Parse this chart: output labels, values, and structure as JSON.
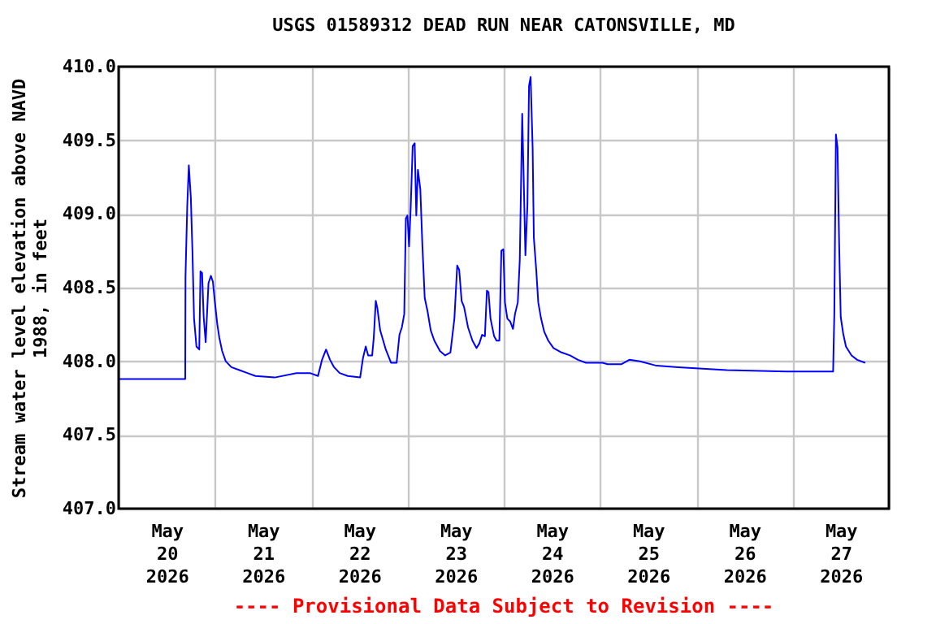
{
  "chart_data": {
    "type": "line",
    "title": "USGS 01589312 DEAD RUN NEAR CATONSVILLE, MD",
    "ylabel": "Stream water level elevation above NAVD\n1988, in feet",
    "annotations": [
      "---- Provisional Data Subject to Revision ----"
    ],
    "xlim": [
      "2026-05-20T00:00",
      "2026-05-28T00:00"
    ],
    "xticks": [
      {
        "value": "2026-05-20T00:00",
        "label": null
      },
      {
        "value": "2026-05-20T12:00",
        "label": "May\n20\n2026"
      },
      {
        "value": "2026-05-21T00:00",
        "label": null
      },
      {
        "value": "2026-05-21T12:00",
        "label": "May\n21\n2026"
      },
      {
        "value": "2026-05-22T00:00",
        "label": null
      },
      {
        "value": "2026-05-22T12:00",
        "label": "May\n22\n2026"
      },
      {
        "value": "2026-05-23T00:00",
        "label": null
      },
      {
        "value": "2026-05-23T12:00",
        "label": "May\n23\n2026"
      },
      {
        "value": "2026-05-24T00:00",
        "label": null
      },
      {
        "value": "2026-05-24T12:00",
        "label": "May\n24\n2026"
      },
      {
        "value": "2026-05-25T00:00",
        "label": null
      },
      {
        "value": "2026-05-25T12:00",
        "label": "May\n25\n2026"
      },
      {
        "value": "2026-05-26T00:00",
        "label": null
      },
      {
        "value": "2026-05-26T12:00",
        "label": "May\n26\n2026"
      },
      {
        "value": "2026-05-27T00:00",
        "label": null
      },
      {
        "value": "2026-05-27T12:00",
        "label": "May\n27\n2026"
      },
      {
        "value": "2026-05-28T00:00",
        "label": null
      }
    ],
    "ylim": [
      407.0,
      410.0
    ],
    "yticks": [
      {
        "value": 407.0,
        "label": "407.0"
      },
      {
        "value": 407.5,
        "label": "407.5"
      },
      {
        "value": 408.0,
        "label": "408.0"
      },
      {
        "value": 408.5,
        "label": "408.5"
      },
      {
        "value": 409.0,
        "label": "409.0"
      },
      {
        "value": 409.5,
        "label": "409.5"
      },
      {
        "value": 410.0,
        "label": "410.0"
      }
    ],
    "grid": true,
    "legend": false,
    "marker": "none",
    "line_style": "solid",
    "series": [
      {
        "color": "#0000ff",
        "x": [
          "2026-05-20T00:00",
          "2026-05-20T16:36",
          "2026-05-20T16:40",
          "2026-05-20T17:06",
          "2026-05-20T17:30",
          "2026-05-20T18:00",
          "2026-05-20T18:24",
          "2026-05-20T18:48",
          "2026-05-20T19:24",
          "2026-05-20T20:06",
          "2026-05-20T20:24",
          "2026-05-20T20:48",
          "2026-05-20T21:12",
          "2026-05-20T21:42",
          "2026-05-20T22:24",
          "2026-05-20T23:00",
          "2026-05-20T23:30",
          "2026-05-21T00:00",
          "2026-05-21T00:36",
          "2026-05-21T01:06",
          "2026-05-21T01:48",
          "2026-05-21T02:42",
          "2026-05-21T04:06",
          "2026-05-21T06:06",
          "2026-05-21T08:06",
          "2026-05-21T10:06",
          "2026-05-21T14:54",
          "2026-05-21T20:18",
          "2026-05-21T23:42",
          "2026-05-22T01:42",
          "2026-05-22T02:42",
          "2026-05-22T03:42",
          "2026-05-22T04:42",
          "2026-05-22T05:42",
          "2026-05-22T07:06",
          "2026-05-22T09:06",
          "2026-05-22T12:12",
          "2026-05-22T12:54",
          "2026-05-22T13:36",
          "2026-05-22T14:12",
          "2026-05-22T15:12",
          "2026-05-22T15:36",
          "2026-05-22T16:06",
          "2026-05-22T16:30",
          "2026-05-22T17:12",
          "2026-05-22T18:36",
          "2026-05-22T19:54",
          "2026-05-22T21:18",
          "2026-05-22T22:00",
          "2026-05-22T22:36",
          "2026-05-22T23:12",
          "2026-05-22T23:36",
          "2026-05-23T00:00",
          "2026-05-23T00:24",
          "2026-05-23T00:48",
          "2026-05-23T01:18",
          "2026-05-23T01:48",
          "2026-05-23T02:12",
          "2026-05-23T02:36",
          "2026-05-23T03:12",
          "2026-05-23T03:42",
          "2026-05-23T04:18",
          "2026-05-23T05:00",
          "2026-05-23T05:48",
          "2026-05-23T06:42",
          "2026-05-23T08:06",
          "2026-05-23T09:24",
          "2026-05-23T10:42",
          "2026-05-23T11:42",
          "2026-05-23T12:24",
          "2026-05-23T12:54",
          "2026-05-23T13:30",
          "2026-05-23T14:06",
          "2026-05-23T15:06",
          "2026-05-23T16:12",
          "2026-05-23T17:12",
          "2026-05-23T17:54",
          "2026-05-23T18:36",
          "2026-05-23T19:18",
          "2026-05-23T19:48",
          "2026-05-23T20:12",
          "2026-05-23T20:42",
          "2026-05-23T21:36",
          "2026-05-23T22:12",
          "2026-05-23T22:54",
          "2026-05-23T23:24",
          "2026-05-23T23:54",
          "2026-05-24T00:18",
          "2026-05-24T00:54",
          "2026-05-24T01:36",
          "2026-05-24T02:18",
          "2026-05-24T02:48",
          "2026-05-24T03:30",
          "2026-05-24T04:00",
          "2026-05-24T04:36",
          "2026-05-24T05:00",
          "2026-05-24T05:24",
          "2026-05-24T05:54",
          "2026-05-24T06:18",
          "2026-05-24T06:42",
          "2026-05-24T07:12",
          "2026-05-24T07:30",
          "2026-05-24T08:06",
          "2026-05-24T08:36",
          "2026-05-24T09:18",
          "2026-05-24T10:06",
          "2026-05-24T11:06",
          "2026-05-24T12:24",
          "2026-05-24T14:24",
          "2026-05-24T16:30",
          "2026-05-24T18:30",
          "2026-05-24T20:30",
          "2026-05-25T00:36",
          "2026-05-25T01:54",
          "2026-05-25T05:18",
          "2026-05-25T06:00",
          "2026-05-25T07:18",
          "2026-05-25T10:00",
          "2026-05-25T14:06",
          "2026-05-25T19:30",
          "2026-05-26T07:36",
          "2026-05-26T22:30",
          "2026-05-27T10:06",
          "2026-05-27T10:24",
          "2026-05-27T10:48",
          "2026-05-27T11:12",
          "2026-05-27T11:36",
          "2026-05-27T12:00",
          "2026-05-27T12:36",
          "2026-05-27T13:18",
          "2026-05-27T14:42",
          "2026-05-27T16:06",
          "2026-05-27T18:06"
        ],
        "values": [
          407.88,
          407.88,
          408.57,
          409.05,
          409.33,
          409.11,
          408.75,
          408.29,
          408.1,
          408.08,
          408.61,
          408.6,
          408.3,
          408.13,
          408.53,
          408.58,
          408.54,
          408.4,
          408.25,
          408.16,
          408.07,
          408.0,
          407.96,
          407.94,
          407.92,
          407.9,
          407.89,
          407.92,
          407.92,
          407.9,
          408.01,
          408.08,
          408.01,
          407.96,
          407.92,
          407.9,
          407.89,
          408.02,
          408.1,
          408.04,
          408.04,
          408.16,
          408.41,
          408.36,
          408.21,
          408.08,
          407.99,
          407.99,
          408.18,
          408.23,
          408.32,
          408.97,
          408.99,
          408.78,
          409.04,
          409.46,
          409.48,
          408.99,
          409.3,
          409.17,
          408.8,
          408.43,
          408.34,
          408.21,
          408.14,
          408.07,
          408.04,
          408.06,
          408.29,
          408.65,
          408.62,
          408.41,
          408.37,
          408.23,
          408.14,
          408.09,
          408.12,
          408.18,
          408.17,
          408.48,
          408.47,
          408.29,
          408.17,
          408.14,
          408.14,
          408.75,
          408.76,
          408.4,
          408.29,
          408.27,
          408.22,
          408.32,
          408.4,
          408.69,
          409.68,
          409.21,
          408.72,
          409.06,
          409.87,
          409.93,
          409.45,
          408.84,
          408.62,
          408.4,
          408.29,
          408.2,
          408.14,
          408.09,
          408.06,
          408.04,
          408.01,
          407.99,
          407.99,
          407.98,
          407.98,
          407.99,
          408.01,
          408.0,
          407.97,
          407.96,
          407.94,
          407.93,
          407.93,
          408.32,
          409.54,
          409.45,
          408.8,
          408.3,
          408.19,
          408.1,
          408.04,
          408.01,
          407.99
        ]
      }
    ]
  }
}
